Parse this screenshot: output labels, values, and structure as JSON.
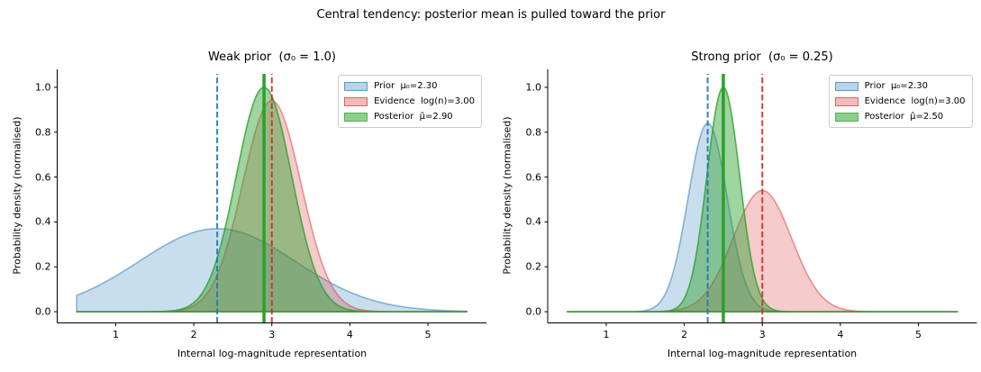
{
  "figure": {
    "suptitle": "Central tendency: posterior mean is pulled toward the prior",
    "background": "#ffffff",
    "text_color": "#000000"
  },
  "chart_data": [
    {
      "type": "area",
      "title": "Weak prior  (σ₀ = 1.0)",
      "xlabel": "Internal log-magnitude representation",
      "ylabel": "Probability density (normalised)",
      "xlim": [
        0.25,
        5.75
      ],
      "ylim": [
        -0.05,
        1.08
      ],
      "x_data_range": [
        0.5,
        5.5
      ],
      "xticks": [
        "1",
        "2",
        "3",
        "4",
        "5"
      ],
      "yticks": [
        "0.0",
        "0.2",
        "0.4",
        "0.6",
        "0.8",
        "1.0"
      ],
      "grid": false,
      "legend_position": "upper right",
      "series": [
        {
          "name": "prior",
          "label": "Prior  μ₀=2.30",
          "shape": "gaussian",
          "mean": 2.3,
          "sigma": 1.0,
          "peak": 0.37,
          "color": "#1f77b4",
          "fill_alpha": 0.24,
          "edge_alpha": 0.5
        },
        {
          "name": "evidence",
          "label": "Evidence  log(n)=3.00",
          "shape": "gaussian",
          "mean": 3.0,
          "sigma": 0.375,
          "peak": 0.94,
          "color": "#d62728",
          "fill_alpha": 0.24,
          "edge_alpha": 0.45
        },
        {
          "name": "posterior",
          "label": "Posterior  μ̂=2.90",
          "shape": "gaussian",
          "mean": 2.9,
          "sigma": 0.355,
          "peak": 1.0,
          "color": "#2ca02c",
          "fill_alpha": 0.45,
          "edge_alpha": 0.8
        }
      ],
      "vlines": [
        {
          "name": "prior-mean-line",
          "x": 2.3,
          "color": "#1f77b4",
          "style": "dashed",
          "width": 2,
          "opacity": 0.9,
          "ymax": 1.06
        },
        {
          "name": "evidence-line",
          "x": 3.0,
          "color": "#d62728",
          "style": "dashed",
          "width": 2,
          "opacity": 0.9,
          "ymax": 1.06
        },
        {
          "name": "posterior-mean-line",
          "x": 2.9,
          "color": "#2ca02c",
          "style": "solid",
          "width": 3.5,
          "opacity": 1.0,
          "ymax": 1.06
        }
      ]
    },
    {
      "type": "area",
      "title": "Strong prior  (σ₀ = 0.25)",
      "xlabel": "Internal log-magnitude representation",
      "ylabel": "Probability density (normalised)",
      "xlim": [
        0.25,
        5.75
      ],
      "ylim": [
        -0.05,
        1.08
      ],
      "x_data_range": [
        0.5,
        5.5
      ],
      "xticks": [
        "1",
        "2",
        "3",
        "4",
        "5"
      ],
      "yticks": [
        "0.0",
        "0.2",
        "0.4",
        "0.6",
        "0.8",
        "1.0"
      ],
      "grid": false,
      "legend_position": "upper right",
      "series": [
        {
          "name": "prior",
          "label": "Prior  μ₀=2.30",
          "shape": "gaussian",
          "mean": 2.3,
          "sigma": 0.25,
          "peak": 0.84,
          "color": "#1f77b4",
          "fill_alpha": 0.24,
          "edge_alpha": 0.5
        },
        {
          "name": "evidence",
          "label": "Evidence  log(n)=3.00",
          "shape": "gaussian",
          "mean": 3.0,
          "sigma": 0.375,
          "peak": 0.54,
          "color": "#d62728",
          "fill_alpha": 0.24,
          "edge_alpha": 0.45
        },
        {
          "name": "posterior",
          "label": "Posterior  μ̂=2.50",
          "shape": "gaussian",
          "mean": 2.5,
          "sigma": 0.21,
          "peak": 1.0,
          "color": "#2ca02c",
          "fill_alpha": 0.45,
          "edge_alpha": 0.8
        }
      ],
      "vlines": [
        {
          "name": "prior-mean-line",
          "x": 2.3,
          "color": "#1f77b4",
          "style": "dashed",
          "width": 2,
          "opacity": 0.9,
          "ymax": 1.06
        },
        {
          "name": "evidence-line",
          "x": 3.0,
          "color": "#d62728",
          "style": "dashed",
          "width": 2,
          "opacity": 0.9,
          "ymax": 1.06
        },
        {
          "name": "posterior-mean-line",
          "x": 2.5,
          "color": "#2ca02c",
          "style": "solid",
          "width": 3.5,
          "opacity": 1.0,
          "ymax": 1.06
        }
      ]
    }
  ]
}
